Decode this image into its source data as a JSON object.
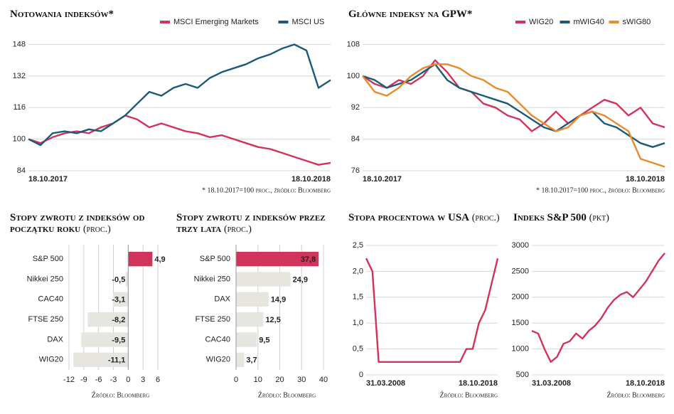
{
  "chart_data": [
    {
      "type": "line",
      "title": "Notowania indeksów*",
      "note": "* 18.10.2017=100 proc., źródło: Bloomberg",
      "categories": [
        "18.10.2017",
        null,
        null,
        null,
        null,
        null,
        null,
        null,
        null,
        null,
        null,
        null,
        null,
        null,
        null,
        null,
        null,
        null,
        null,
        null,
        null,
        null,
        null,
        null,
        null,
        "18.10.2018"
      ],
      "series": [
        {
          "name": "MSCI Emerging Markets",
          "color": "#d1335b",
          "values": [
            100,
            98,
            101,
            103,
            104,
            103,
            106,
            108,
            112,
            110,
            106,
            108,
            106,
            104,
            103,
            101,
            102,
            100,
            98,
            96,
            95,
            93,
            91,
            89,
            87,
            88
          ]
        },
        {
          "name": "MSCI US",
          "color": "#1b5a78",
          "values": [
            100,
            97,
            103,
            104,
            103,
            105,
            104,
            108,
            112,
            118,
            124,
            122,
            126,
            128,
            126,
            131,
            134,
            136,
            138,
            141,
            143,
            146,
            148,
            145,
            126,
            130
          ]
        }
      ],
      "ylim": [
        84,
        150
      ],
      "yticks": [
        84,
        100,
        116,
        132,
        148
      ],
      "grid": true,
      "legend": "top"
    },
    {
      "type": "line",
      "title": "Główne indeksy na GPW*",
      "note": "* 18.10.2017=100 proc., źródło: Bloomberg",
      "categories": [
        "18.10.2017",
        null,
        null,
        null,
        null,
        null,
        null,
        null,
        null,
        null,
        null,
        null,
        null,
        null,
        null,
        null,
        null,
        null,
        null,
        null,
        null,
        null,
        null,
        null,
        null,
        "18.10.2018"
      ],
      "series": [
        {
          "name": "WIG20",
          "color": "#d1335b",
          "values": [
            100,
            98,
            97,
            99,
            98,
            100,
            104,
            101,
            97,
            96,
            93,
            92,
            90,
            89,
            86,
            88,
            91,
            88,
            90,
            92,
            94,
            93,
            90,
            92,
            88,
            87
          ]
        },
        {
          "name": "mWIG40",
          "color": "#1b5a78",
          "values": [
            100,
            99,
            97,
            98,
            99,
            101,
            103,
            99,
            97,
            96,
            95,
            94,
            93,
            91,
            89,
            87,
            86,
            88,
            90,
            91,
            88,
            87,
            85,
            83,
            82,
            83
          ]
        },
        {
          "name": "sWIG80",
          "color": "#e98a2c",
          "values": [
            100,
            96,
            95,
            97,
            100,
            102,
            103,
            103,
            102,
            100,
            99,
            97,
            96,
            93,
            90,
            88,
            86,
            87,
            90,
            91,
            90,
            88,
            86,
            79,
            78,
            77
          ]
        }
      ],
      "ylim": [
        76,
        109
      ],
      "yticks": [
        76,
        84,
        92,
        100,
        108
      ],
      "grid": true,
      "legend": "top"
    },
    {
      "type": "bar",
      "orientation": "horizontal",
      "title": "Stopy zwrotu z indeksów od początku roku",
      "subtitle": "(proc.)",
      "source": "Źródło: Bloomberg",
      "categories": [
        "S&P 500",
        "Nikkei 250",
        "CAC40",
        "FTSE 250",
        "DAX",
        "WIG20"
      ],
      "values": [
        4.9,
        -0.5,
        -3.1,
        -8.2,
        -9.5,
        -11.1
      ],
      "value_labels": [
        "4,9",
        "-0,5",
        "-3,1",
        "-8,2",
        "-9,5",
        "-11,1"
      ],
      "colors": [
        "#d1335b",
        "#e6e5e0",
        "#e6e5e0",
        "#e6e5e0",
        "#e6e5e0",
        "#e6e5e0"
      ],
      "xlim": [
        -12,
        6
      ],
      "xticks": [
        -12,
        -9,
        -6,
        -3,
        0,
        3,
        6
      ],
      "grid": true
    },
    {
      "type": "bar",
      "orientation": "horizontal",
      "title": "Stopy zwrotu z indeksów przez trzy lata",
      "subtitle": "(proc.)",
      "source": "Źródło: Bloomberg",
      "categories": [
        "S&P 500",
        "Nikkei 250",
        "DAX",
        "FTSE 250",
        "CAC40",
        "WIG20"
      ],
      "values": [
        37.8,
        24.9,
        14.9,
        12.5,
        9.5,
        3.7
      ],
      "value_labels": [
        "37,8",
        "24,9",
        "14,9",
        "12,5",
        "9,5",
        "3,7"
      ],
      "colors": [
        "#d1335b",
        "#e6e5e0",
        "#e6e5e0",
        "#e6e5e0",
        "#e6e5e0",
        "#e6e5e0"
      ],
      "xlim": [
        0,
        40
      ],
      "xticks": [
        0,
        10,
        20,
        30,
        40
      ],
      "grid": true
    },
    {
      "type": "line",
      "title": "Stopa procentowa w USA",
      "subtitle": "(proc.)",
      "source": "Źródło: Bloomberg",
      "categories": [
        "31.03.2008",
        null,
        null,
        null,
        null,
        null,
        null,
        null,
        null,
        null,
        null,
        null,
        null,
        null,
        null,
        null,
        null,
        null,
        null,
        null,
        null,
        "18.10.2018"
      ],
      "series": [
        {
          "name": "Stopa procentowa",
          "color": "#d1335b",
          "values": [
            2.25,
            2.0,
            0.25,
            0.25,
            0.25,
            0.25,
            0.25,
            0.25,
            0.25,
            0.25,
            0.25,
            0.25,
            0.25,
            0.25,
            0.25,
            0.25,
            0.5,
            0.5,
            1.0,
            1.25,
            1.75,
            2.25
          ]
        }
      ],
      "ylim": [
        0,
        2.5
      ],
      "yticks": [
        0,
        {
          "value": 0.5,
          "label": "0,5"
        },
        {
          "value": 1,
          "label": "1,0"
        },
        {
          "value": 1.5,
          "label": "1,5"
        },
        {
          "value": 2,
          "label": "2,0"
        },
        {
          "value": 2.5,
          "label": "2,5"
        }
      ],
      "grid": true
    },
    {
      "type": "line",
      "title": "Indeks S&P 500",
      "subtitle": "(pkt)",
      "source": "Źródło: Bloomberg",
      "categories": [
        "31.03.2008",
        null,
        null,
        null,
        null,
        null,
        null,
        null,
        null,
        null,
        null,
        null,
        null,
        null,
        null,
        null,
        null,
        null,
        null,
        null,
        null,
        "18.10.2018"
      ],
      "series": [
        {
          "name": "S&P 500",
          "color": "#d1335b",
          "values": [
            1350,
            1300,
            1000,
            750,
            850,
            1100,
            1150,
            1300,
            1200,
            1350,
            1450,
            1600,
            1800,
            1950,
            2050,
            2100,
            2000,
            2150,
            2300,
            2500,
            2700,
            2850
          ]
        }
      ],
      "ylim": [
        500,
        3000
      ],
      "yticks": [
        500,
        1000,
        1500,
        2000,
        2500,
        3000
      ],
      "grid": true
    }
  ]
}
